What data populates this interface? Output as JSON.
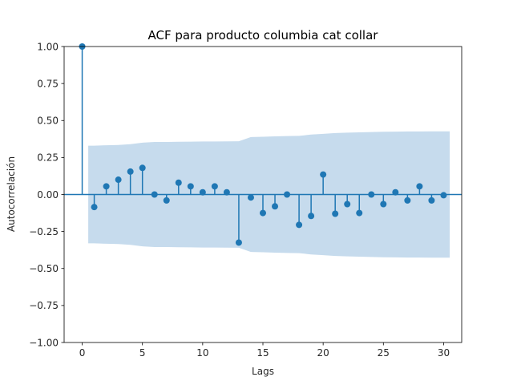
{
  "chart_data": {
    "type": "scatter",
    "title": "ACF para producto columbia cat collar",
    "xlabel": "Lags",
    "ylabel": "Autocorrelación",
    "xlim": [
      -1.5,
      31.5
    ],
    "ylim": [
      -1.0,
      1.0
    ],
    "xticks": [
      0,
      5,
      10,
      15,
      20,
      25,
      30
    ],
    "xtick_labels": [
      "0",
      "5",
      "10",
      "15",
      "20",
      "25",
      "30"
    ],
    "yticks": [
      -1.0,
      -0.75,
      -0.5,
      -0.25,
      0.0,
      0.25,
      0.5,
      0.75,
      1.0
    ],
    "ytick_labels": [
      "−1.00",
      "−0.75",
      "−0.50",
      "−0.25",
      "0.00",
      "0.25",
      "0.50",
      "0.75",
      "1.00"
    ],
    "grid": false,
    "lags": [
      0,
      1,
      2,
      3,
      4,
      5,
      6,
      7,
      8,
      9,
      10,
      11,
      12,
      13,
      14,
      15,
      16,
      17,
      18,
      19,
      20,
      21,
      22,
      23,
      24,
      25,
      26,
      27,
      28,
      29,
      30
    ],
    "acf": [
      1.0,
      -0.085,
      0.055,
      0.1,
      0.155,
      0.18,
      0.0,
      -0.04,
      0.08,
      0.055,
      0.015,
      0.055,
      0.015,
      -0.325,
      -0.02,
      -0.125,
      -0.08,
      0.0,
      -0.205,
      -0.145,
      0.135,
      -0.13,
      -0.065,
      -0.125,
      0.0,
      -0.065,
      0.015,
      -0.04,
      0.055,
      -0.04,
      -0.005
    ],
    "confidence_band": {
      "lags": [
        1,
        2,
        3,
        4,
        5,
        6,
        7,
        8,
        9,
        10,
        11,
        12,
        13,
        14,
        15,
        16,
        17,
        18,
        19,
        20,
        21,
        22,
        23,
        24,
        25,
        26,
        27,
        28,
        29,
        30
      ],
      "upper": [
        0.33,
        0.333,
        0.335,
        0.34,
        0.35,
        0.355,
        0.355,
        0.356,
        0.357,
        0.358,
        0.358,
        0.359,
        0.36,
        0.388,
        0.39,
        0.393,
        0.395,
        0.396,
        0.405,
        0.41,
        0.415,
        0.418,
        0.42,
        0.422,
        0.424,
        0.425,
        0.426,
        0.426,
        0.427,
        0.427
      ]
    },
    "colors": {
      "marker": "#1f77b4",
      "band": "#c6dbed",
      "axes": "#000000"
    }
  }
}
